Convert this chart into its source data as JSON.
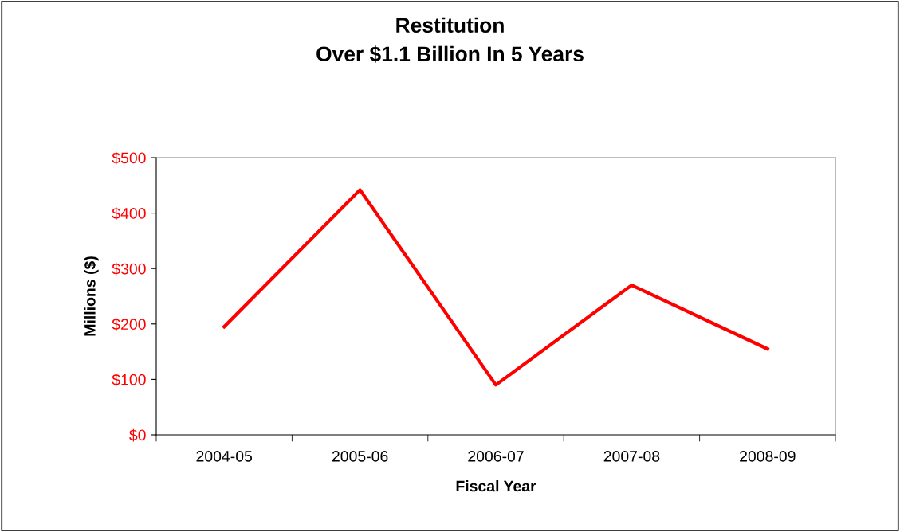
{
  "chart_data": {
    "type": "line",
    "title": "Restitution",
    "subtitle": "Over $1.1 Billion In 5 Years",
    "xlabel": "Fiscal Year",
    "ylabel": "Millions ($)",
    "categories": [
      "2004-05",
      "2005-06",
      "2006-07",
      "2007-08",
      "2008-09"
    ],
    "series": [
      {
        "color": "#ff0000",
        "values": [
          195,
          442,
          90,
          270,
          155
        ]
      }
    ],
    "ylim": [
      0,
      500
    ],
    "yticks": [
      {
        "value": 0,
        "label": "$0"
      },
      {
        "value": 100,
        "label": "$100"
      },
      {
        "value": 200,
        "label": "$200"
      },
      {
        "value": 300,
        "label": "$300"
      },
      {
        "value": 400,
        "label": "$400"
      },
      {
        "value": 500,
        "label": "$500"
      }
    ],
    "grid": false,
    "legend": false,
    "marker": "none",
    "line_style": "solid"
  }
}
